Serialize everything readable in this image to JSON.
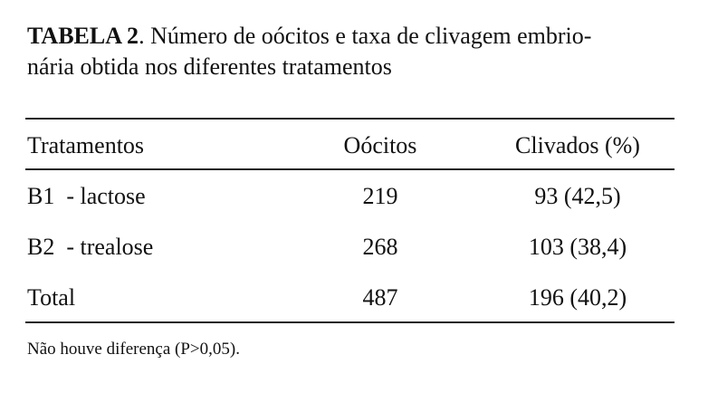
{
  "caption": {
    "label": "TABELA 2",
    "lines": [
      ". Número de oócitos e taxa de clivagem embrio-",
      "nária obtida nos diferentes tratamentos"
    ]
  },
  "table": {
    "header": [
      "Tratamentos",
      "Oócitos",
      "Clivados (%)"
    ],
    "rows": [
      [
        "B1  - lactose",
        "219",
        "93 (42,5)"
      ],
      [
        "B2  - trealose",
        "268",
        "103 (38,4)"
      ],
      [
        "Total",
        "487",
        "196 (40,2)"
      ]
    ]
  },
  "footnote": "Não houve diferença (P>0,05)."
}
